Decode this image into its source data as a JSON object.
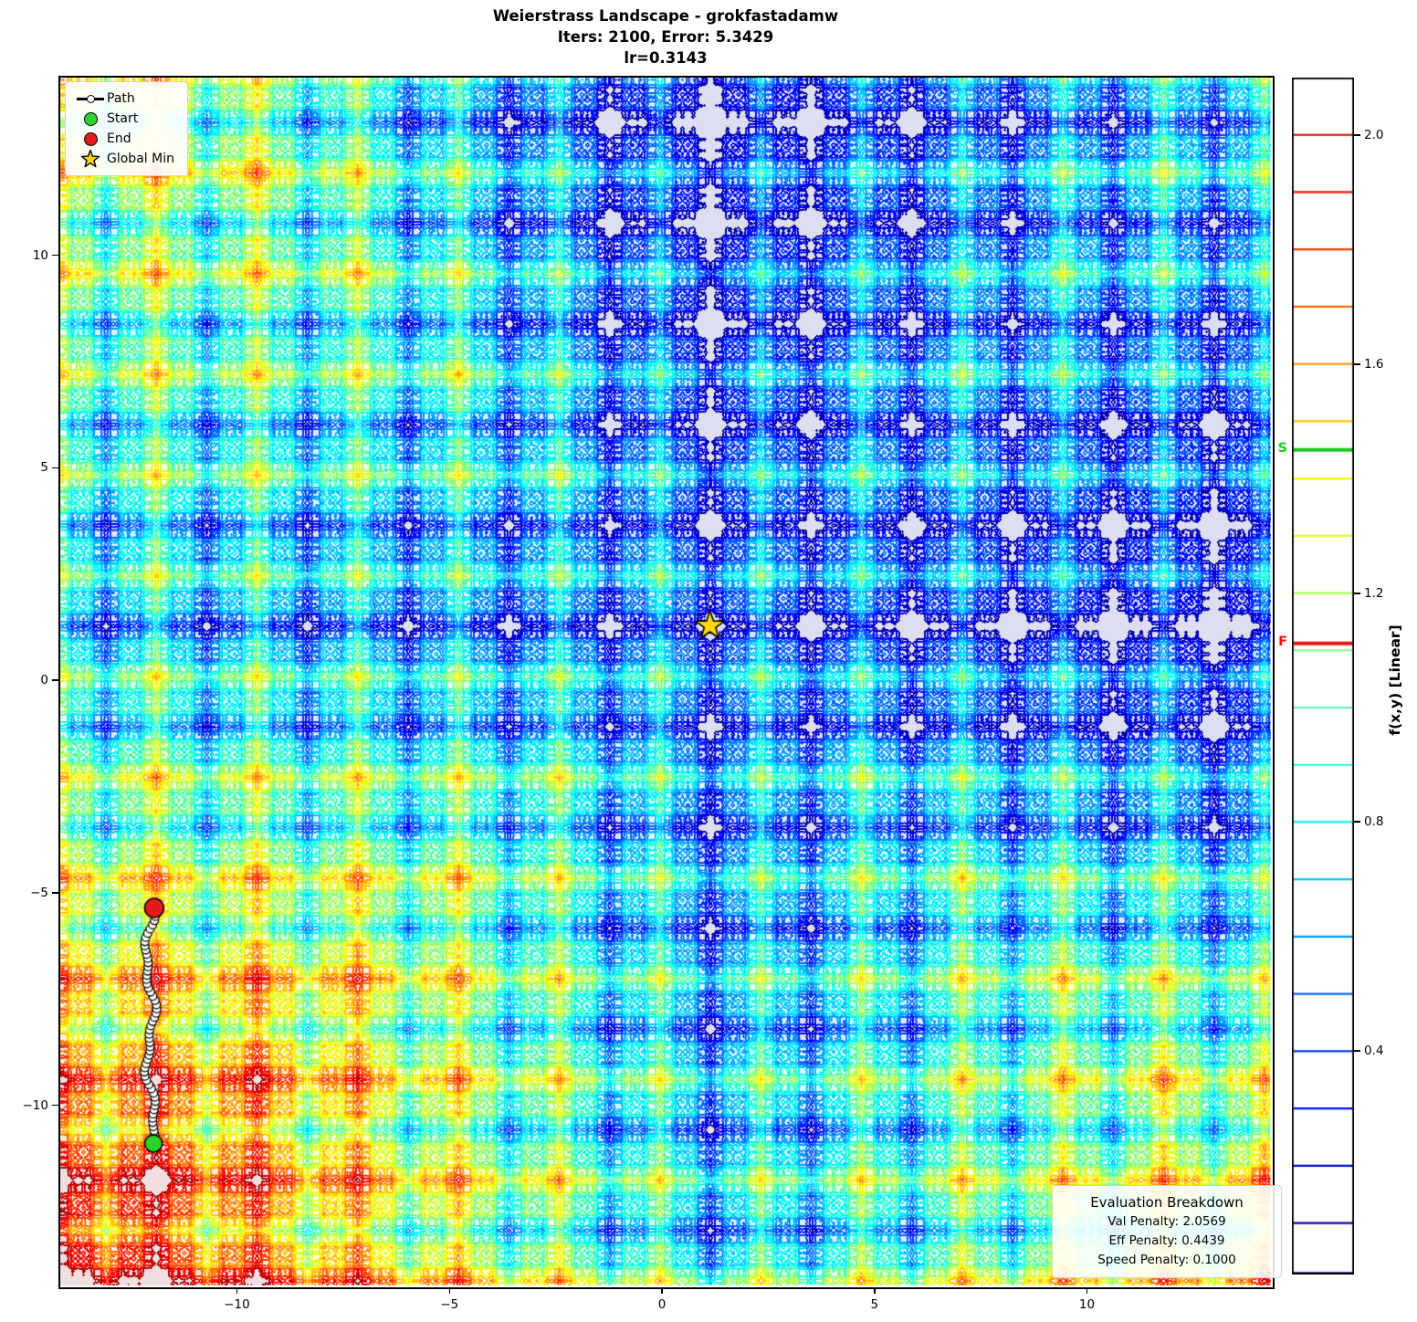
{
  "title": {
    "line1": "Weierstrass Landscape - grokfastadamw",
    "line2": "Iters: 2100, Error: 5.3429",
    "line3": "lr=0.3143"
  },
  "legend": {
    "items": [
      {
        "id": "path",
        "label": "Path",
        "color": "#000000"
      },
      {
        "id": "start",
        "label": "Start",
        "color": "#2bd32b"
      },
      {
        "id": "end",
        "label": "End",
        "color": "#e41a1a"
      },
      {
        "id": "global-min",
        "label": "Global Min",
        "color": "#ffd700"
      }
    ]
  },
  "axes": {
    "x_ticks": [
      -10,
      -5,
      0,
      5,
      10
    ],
    "y_ticks": [
      10,
      5,
      0,
      -5,
      -10
    ],
    "xlim": [
      -14.16,
      14.33
    ],
    "ylim": [
      -14.29,
      14.18
    ]
  },
  "colorbar": {
    "label": "f(x,y) [Linear]",
    "ticks": [
      2.0,
      1.6,
      1.2,
      0.8,
      0.4
    ],
    "vmin": 0.01,
    "vmax": 2.1,
    "level_step": 0.1,
    "colormap": "jet",
    "start_marker": {
      "label": "S",
      "value": 1.45,
      "color": "#1dc91d"
    },
    "finish_marker": {
      "label": "F",
      "value": 1.112,
      "color": "#ee1212"
    }
  },
  "eval_box": {
    "title": "Evaluation Breakdown",
    "lines": [
      "Val Penalty: 2.0569",
      "Eff Penalty: 0.4439",
      "Speed Penalty: 0.1000"
    ]
  },
  "chart_data": {
    "type": "contour",
    "function": "Weierstrass",
    "optimizer": "grokfastadamw",
    "iters": 2100,
    "error": 5.3429,
    "lr": 0.3143,
    "val_penalty": 2.0569,
    "eff_penalty": 0.4439,
    "speed_penalty": 0.1,
    "global_min": [
      1.13,
      1.28
    ],
    "path": {
      "start": [
        -12.02,
        -10.9
      ],
      "end": [
        -12.06,
        -5.36
      ],
      "marker_count": 57
    },
    "start_value": 1.45,
    "finish_value": 1.112,
    "levels": {
      "min": 0.1,
      "max": 2.1,
      "step": 0.1
    },
    "field_model": {
      "base_period": 2.37,
      "octaves": 4,
      "amplitudes": [
        1,
        0.5,
        0.25,
        0.1
      ],
      "lacunarity": 3
    }
  }
}
